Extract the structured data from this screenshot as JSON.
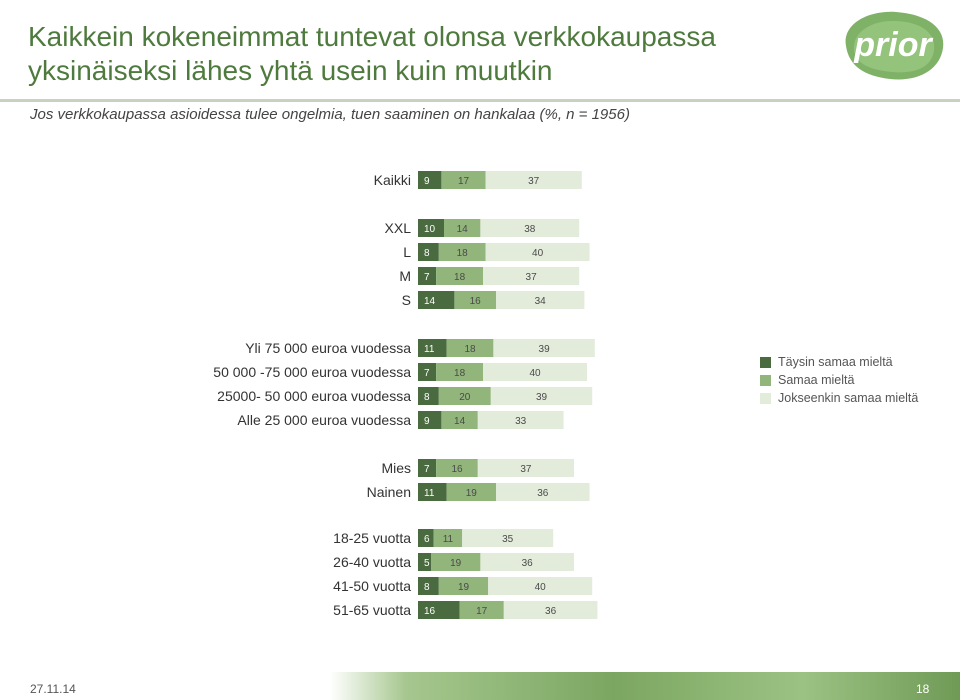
{
  "header": {
    "title": "Kaikkein kokeneimmat tuntevat olonsa verkkokaupassa yksinäiseksi lähes yhtä usein kuin muutkin",
    "subtitle": "Jos verkkokaupassa asioidessa tulee ongelmia, tuen saaminen on hankalaa (%, n = 1956)",
    "logo_text": "prior"
  },
  "footer": {
    "date": "27.11.14",
    "page": "18"
  },
  "colors": {
    "dark": "#4a6a3f",
    "mid": "#92b57c",
    "light": "#e3ecdb",
    "title": "#4e7a3d"
  },
  "chart_data": {
    "type": "bar",
    "stacked": true,
    "orientation": "horizontal",
    "series": [
      {
        "name": "Täysin samaa mieltä",
        "color": "#4a6a3f"
      },
      {
        "name": "Samaa mieltä",
        "color": "#92b57c"
      },
      {
        "name": "Jokseenkin samaa mieltä",
        "color": "#e3ecdb"
      }
    ],
    "groups": [
      {
        "rows": [
          {
            "label": "Kaikki",
            "values": [
              9,
              17,
              37
            ]
          }
        ]
      },
      {
        "rows": [
          {
            "label": "XXL",
            "values": [
              10,
              14,
              38
            ]
          },
          {
            "label": "L",
            "values": [
              8,
              18,
              40
            ]
          },
          {
            "label": "M",
            "values": [
              7,
              18,
              37
            ]
          },
          {
            "label": "S",
            "values": [
              14,
              16,
              34
            ]
          }
        ]
      },
      {
        "rows": [
          {
            "label": "Yli 75 000 euroa vuodessa",
            "values": [
              11,
              18,
              39
            ]
          },
          {
            "label": "50 000 -75 000 euroa vuodessa",
            "values": [
              7,
              18,
              40
            ]
          },
          {
            "label": "25000- 50 000 euroa vuodessa",
            "values": [
              8,
              20,
              39
            ]
          },
          {
            "label": "Alle 25 000 euroa vuodessa",
            "values": [
              9,
              14,
              33
            ]
          }
        ]
      },
      {
        "rows": [
          {
            "label": "Mies",
            "values": [
              7,
              16,
              37
            ]
          },
          {
            "label": "Nainen",
            "values": [
              11,
              19,
              36
            ]
          }
        ]
      },
      {
        "rows": [
          {
            "label": "18-25 vuotta",
            "values": [
              6,
              11,
              35
            ]
          },
          {
            "label": "26-40 vuotta",
            "values": [
              5,
              19,
              36
            ]
          },
          {
            "label": "41-50 vuotta",
            "values": [
              8,
              19,
              40
            ]
          },
          {
            "label": "51-65 vuotta",
            "values": [
              16,
              17,
              36
            ]
          }
        ]
      }
    ],
    "legend_position": "right",
    "grid": false
  }
}
